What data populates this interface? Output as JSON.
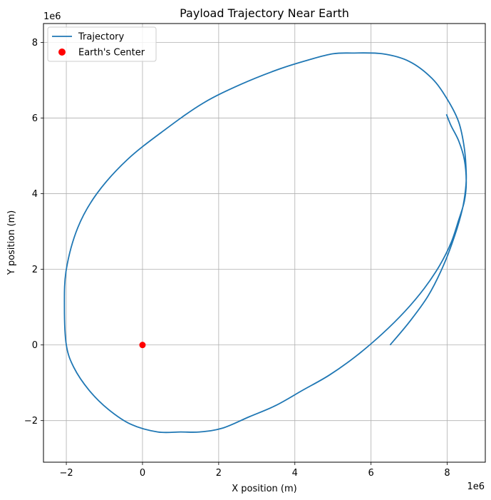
{
  "chart_data": {
    "type": "line",
    "title": "Payload Trajectory Near Earth",
    "xlabel": "X position (m)",
    "ylabel": "Y position (m)",
    "x_offset_label": "1e6",
    "y_offset_label": "1e6",
    "xlim": [
      -2.6,
      9.0
    ],
    "ylim": [
      -3.1,
      8.5
    ],
    "xticks": [
      -2,
      0,
      2,
      4,
      6,
      8
    ],
    "yticks": [
      -2,
      0,
      2,
      4,
      6,
      8
    ],
    "xtick_labels": [
      "−2",
      "0",
      "2",
      "4",
      "6",
      "8"
    ],
    "ytick_labels": [
      "−2",
      "0",
      "2",
      "4",
      "6",
      "8"
    ],
    "grid": true,
    "legend_position": "top-left",
    "series": [
      {
        "name": "Trajectory",
        "kind": "line",
        "color": "#1f77b4",
        "x": [
          6.5,
          7.0,
          7.5,
          7.9,
          8.2,
          8.4,
          8.48,
          8.5,
          8.45,
          8.3,
          8.0,
          7.6,
          7.0,
          6.3,
          5.5,
          5.0,
          4.4,
          3.6,
          2.6,
          1.6,
          0.6,
          -0.4,
          -1.2,
          -1.7,
          -2.0,
          -2.05,
          -2.0,
          -1.8,
          -1.4,
          -0.9,
          -0.3,
          0.4,
          1.0,
          1.5,
          2.1,
          2.8,
          3.5,
          4.2,
          4.9,
          5.6,
          6.3,
          6.9,
          7.4,
          7.8,
          8.1,
          8.3,
          8.45,
          8.5,
          8.45,
          8.3,
          8.1,
          7.98
        ],
        "y": [
          0.0,
          0.6,
          1.3,
          2.1,
          2.9,
          3.6,
          4.1,
          4.5,
          5.2,
          5.9,
          6.5,
          7.05,
          7.5,
          7.7,
          7.72,
          7.7,
          7.55,
          7.3,
          6.9,
          6.4,
          5.7,
          4.9,
          4.0,
          3.1,
          2.0,
          1.0,
          0.0,
          -0.6,
          -1.2,
          -1.7,
          -2.1,
          -2.3,
          -2.3,
          -2.3,
          -2.2,
          -1.9,
          -1.6,
          -1.2,
          -0.8,
          -0.3,
          0.3,
          0.9,
          1.5,
          2.1,
          2.7,
          3.3,
          3.8,
          4.3,
          4.9,
          5.4,
          5.8,
          6.1
        ]
      },
      {
        "name": "Earth's Center",
        "kind": "scatter",
        "color": "#ff0000",
        "x": [
          0
        ],
        "y": [
          0
        ]
      }
    ]
  }
}
